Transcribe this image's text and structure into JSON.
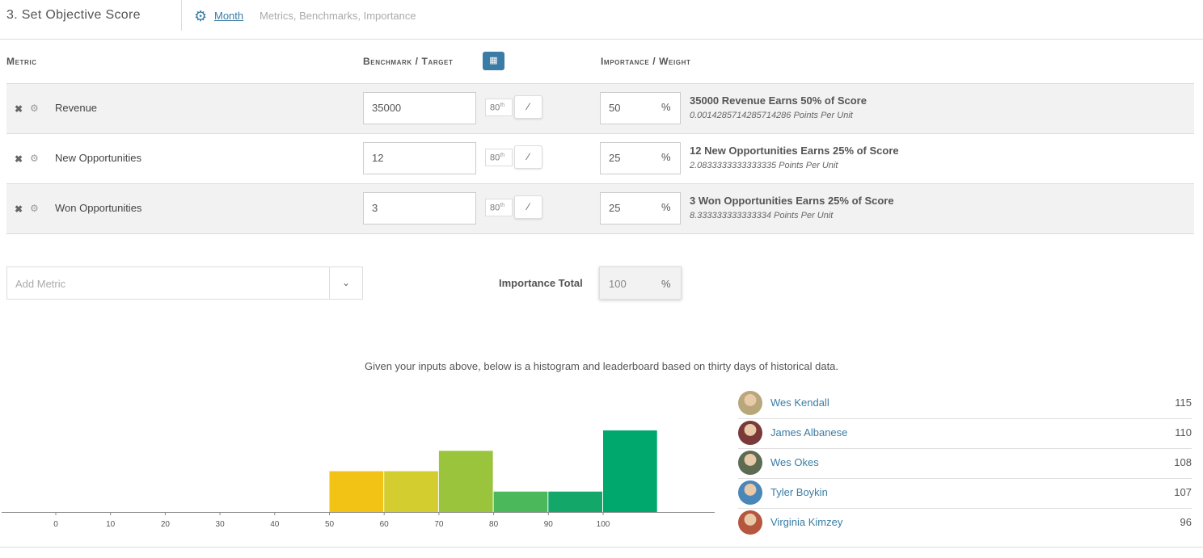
{
  "header": {
    "title": "3. Set Objective Score",
    "period_link": "Month",
    "crumb": "Metrics, Benchmarks, Importance"
  },
  "columns": {
    "metric": "Metric",
    "benchmark": "Benchmark / Target",
    "importance": "Importance / Weight"
  },
  "metrics": [
    {
      "name": "Revenue",
      "benchmark": "35000",
      "percentile": "80",
      "percentile_suffix": "th",
      "weight": "50",
      "weight_symbol": "%",
      "earns": "35000 Revenue Earns 50% of Score",
      "points": "0.0014285714285714286 Points Per Unit"
    },
    {
      "name": "New Opportunities",
      "benchmark": "12",
      "percentile": "80",
      "percentile_suffix": "th",
      "weight": "25",
      "weight_symbol": "%",
      "earns": "12 New Opportunities Earns 25% of Score",
      "points": "2.0833333333333335 Points Per Unit"
    },
    {
      "name": "Won Opportunities",
      "benchmark": "3",
      "percentile": "80",
      "percentile_suffix": "th",
      "weight": "25",
      "weight_symbol": "%",
      "earns": "3 Won Opportunities Earns 25% of Score",
      "points": "8.333333333333334 Points Per Unit"
    }
  ],
  "add_metric": {
    "placeholder": "Add Metric"
  },
  "importance_total": {
    "label": "Importance Total",
    "value": "100",
    "symbol": "%"
  },
  "caption": "Given your inputs above, below is a histogram and leaderboard based on thirty days of historical data.",
  "chart_data": {
    "type": "bar",
    "x_ticks": [
      "0",
      "10",
      "20",
      "30",
      "40",
      "50",
      "60",
      "70",
      "80",
      "90",
      "100"
    ],
    "bins": [
      {
        "start": 50,
        "end": 60,
        "value": 2,
        "color": "#f2c314"
      },
      {
        "start": 60,
        "end": 70,
        "value": 2,
        "color": "#d3cd30"
      },
      {
        "start": 70,
        "end": 80,
        "value": 3,
        "color": "#99c43c"
      },
      {
        "start": 80,
        "end": 90,
        "value": 1,
        "color": "#4cb85c"
      },
      {
        "start": 90,
        "end": 100,
        "value": 1,
        "color": "#13a86a"
      },
      {
        "start": 100,
        "end": 110,
        "value": 4,
        "color": "#00a86e"
      }
    ],
    "xlim": [
      0,
      110
    ],
    "ylim": [
      0,
      4
    ]
  },
  "leaderboard": [
    {
      "name": "Wes Kendall",
      "score": "115",
      "avatar_color": "#b9a77c"
    },
    {
      "name": "James Albanese",
      "score": "110",
      "avatar_color": "#7a3a3a"
    },
    {
      "name": "Wes Okes",
      "score": "108",
      "avatar_color": "#5d6b52"
    },
    {
      "name": "Tyler Boykin",
      "score": "107",
      "avatar_color": "#4a86b8"
    },
    {
      "name": "Virginia Kimzey",
      "score": "96",
      "avatar_color": "#b5563f"
    }
  ],
  "colors": {
    "accent": "#3a7ca5",
    "row_shade": "#f2f2f2"
  },
  "icons": {
    "settings": "gear-icon",
    "remove": "close-icon",
    "calendar": "calendar-icon",
    "wand": "magic-wand-icon",
    "dropdown": "chevron-down-icon"
  }
}
